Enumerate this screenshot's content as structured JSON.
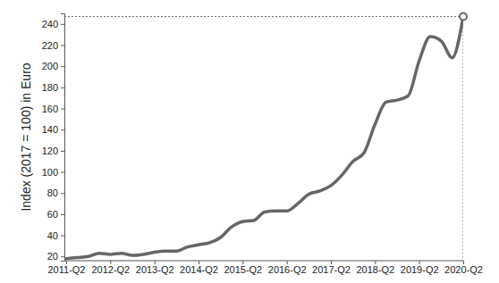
{
  "chart_data": {
    "type": "line",
    "y_label": "Index (2017 = 100) in Euro",
    "categories": [
      "2011-Q2",
      null,
      null,
      null,
      "2012-Q2",
      null,
      null,
      null,
      "2013-Q2",
      null,
      null,
      null,
      "2014-Q2",
      null,
      null,
      null,
      "2015-Q2",
      null,
      null,
      null,
      "2016-Q2",
      null,
      null,
      null,
      "2017-Q2",
      null,
      null,
      null,
      "2018-Q2",
      null,
      null,
      null,
      "2019-Q2",
      null,
      null,
      null,
      "2020-Q2"
    ],
    "values": [
      18,
      19,
      20,
      23,
      22,
      23,
      21,
      22,
      24,
      25,
      25,
      29,
      31,
      33,
      38,
      48,
      53,
      54,
      62,
      63,
      63,
      70,
      79,
      82,
      87,
      97,
      110,
      118,
      145,
      166,
      168,
      172,
      205,
      228,
      224,
      208,
      247
    ],
    "color": "#666666",
    "ylim": [
      16,
      250
    ],
    "yticks": [
      20,
      40,
      60,
      80,
      100,
      120,
      140,
      160,
      180,
      200,
      220,
      240
    ],
    "grid": false
  }
}
